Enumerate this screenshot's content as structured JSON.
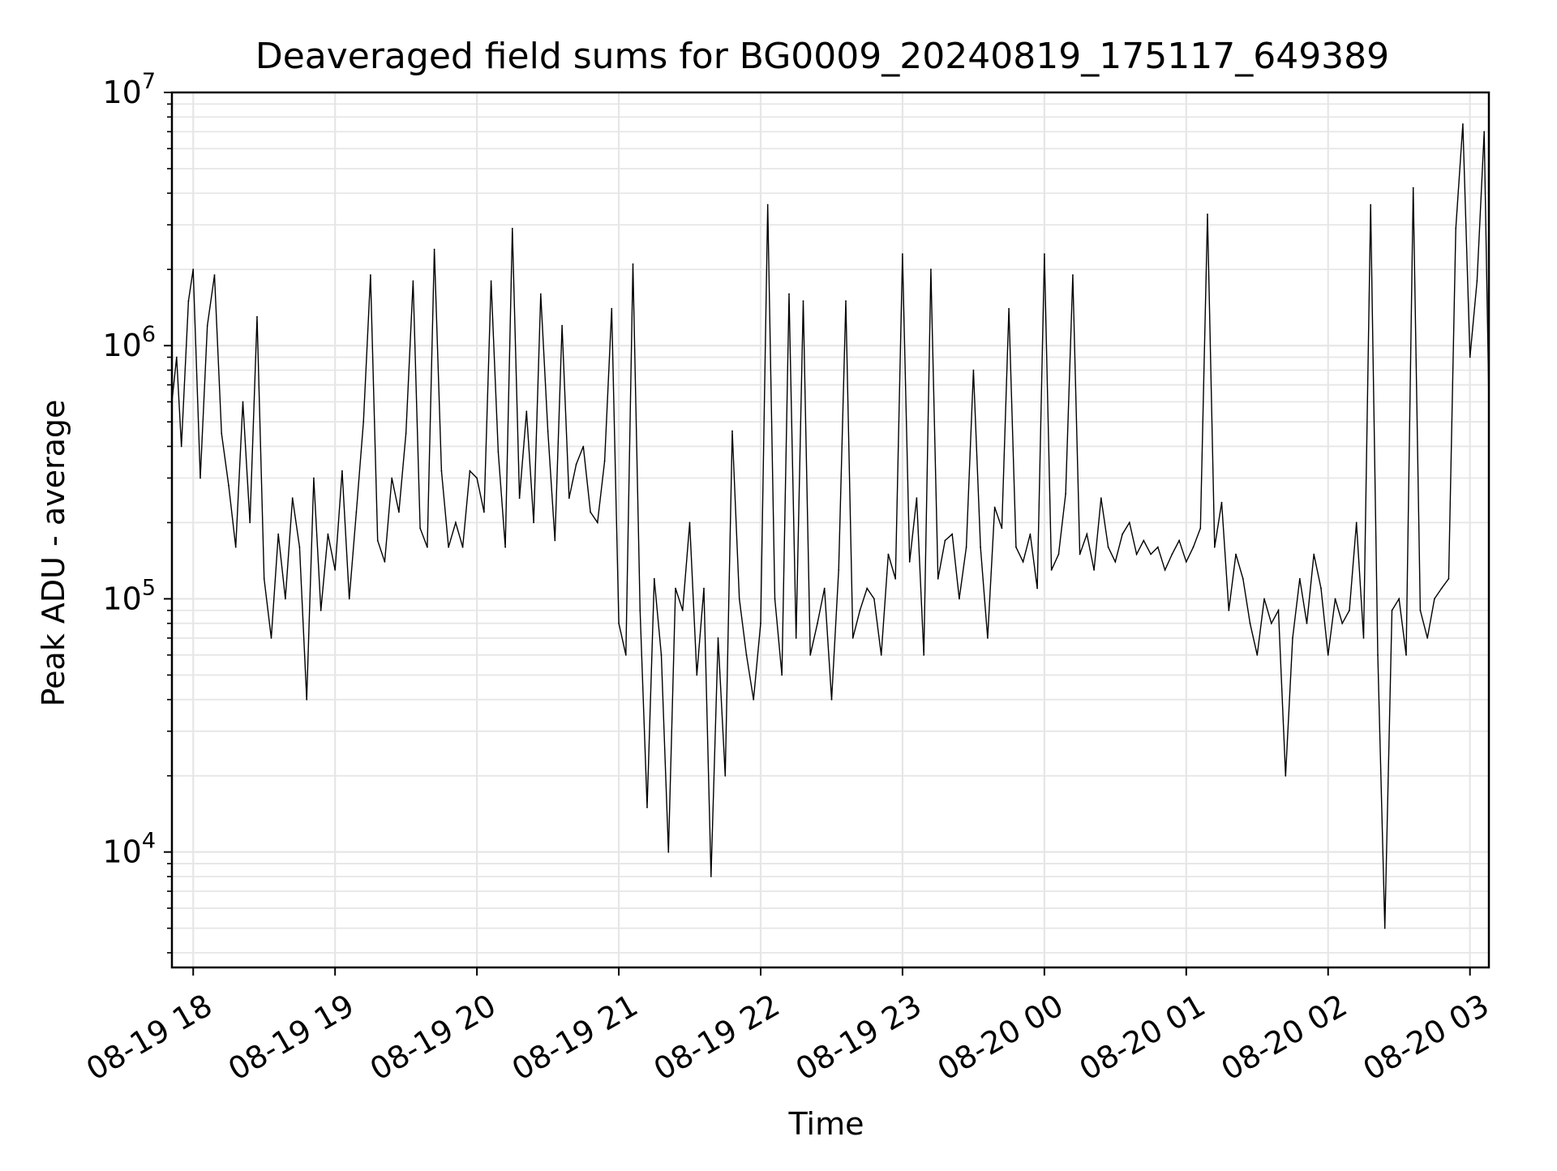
{
  "chart_data": {
    "type": "line",
    "title": "Deaveraged field sums for BG0009_20240819_175117_649389",
    "xlabel": "Time",
    "ylabel": "Peak ADU - average",
    "yscale": "log",
    "ylim": [
      3500,
      10000000
    ],
    "xlim": [
      "2024-08-19 17:51",
      "2024-08-20 03:08"
    ],
    "grid": true,
    "colors": {
      "line": "#000000",
      "grid": "#e6e6e6",
      "axes": "#000000"
    },
    "x_ticks": [
      {
        "value": "2024-08-19 18:00",
        "label": "08-19 18"
      },
      {
        "value": "2024-08-19 19:00",
        "label": "08-19 19"
      },
      {
        "value": "2024-08-19 20:00",
        "label": "08-19 20"
      },
      {
        "value": "2024-08-19 21:00",
        "label": "08-19 21"
      },
      {
        "value": "2024-08-19 22:00",
        "label": "08-19 22"
      },
      {
        "value": "2024-08-19 23:00",
        "label": "08-19 23"
      },
      {
        "value": "2024-08-20 00:00",
        "label": "08-20 00"
      },
      {
        "value": "2024-08-20 01:00",
        "label": "08-20 01"
      },
      {
        "value": "2024-08-20 02:00",
        "label": "08-20 02"
      },
      {
        "value": "2024-08-20 03:00",
        "label": "08-20 03"
      }
    ],
    "y_ticks": [
      {
        "value": 10000,
        "base": "10",
        "exp": "4"
      },
      {
        "value": 100000,
        "base": "10",
        "exp": "5"
      },
      {
        "value": 1000000,
        "base": "10",
        "exp": "6"
      },
      {
        "value": 10000000,
        "base": "10",
        "exp": "7"
      }
    ],
    "series": [
      {
        "values_note": "",
        "x": [
          "2024-08-19 17:51",
          "2024-08-19 17:53",
          "2024-08-19 17:55",
          "2024-08-19 17:58",
          "2024-08-19 18:00",
          "2024-08-19 18:03",
          "2024-08-19 18:06",
          "2024-08-19 18:09",
          "2024-08-19 18:12",
          "2024-08-19 18:15",
          "2024-08-19 18:18",
          "2024-08-19 18:21",
          "2024-08-19 18:24",
          "2024-08-19 18:27",
          "2024-08-19 18:30",
          "2024-08-19 18:33",
          "2024-08-19 18:36",
          "2024-08-19 18:39",
          "2024-08-19 18:42",
          "2024-08-19 18:45",
          "2024-08-19 18:48",
          "2024-08-19 18:51",
          "2024-08-19 18:54",
          "2024-08-19 18:57",
          "2024-08-19 19:00",
          "2024-08-19 19:03",
          "2024-08-19 19:06",
          "2024-08-19 19:09",
          "2024-08-19 19:12",
          "2024-08-19 19:15",
          "2024-08-19 19:18",
          "2024-08-19 19:21",
          "2024-08-19 19:24",
          "2024-08-19 19:27",
          "2024-08-19 19:30",
          "2024-08-19 19:33",
          "2024-08-19 19:36",
          "2024-08-19 19:39",
          "2024-08-19 19:42",
          "2024-08-19 19:45",
          "2024-08-19 19:48",
          "2024-08-19 19:51",
          "2024-08-19 19:54",
          "2024-08-19 19:57",
          "2024-08-19 20:00",
          "2024-08-19 20:03",
          "2024-08-19 20:06",
          "2024-08-19 20:09",
          "2024-08-19 20:12",
          "2024-08-19 20:15",
          "2024-08-19 20:18",
          "2024-08-19 20:21",
          "2024-08-19 20:24",
          "2024-08-19 20:27",
          "2024-08-19 20:30",
          "2024-08-19 20:33",
          "2024-08-19 20:36",
          "2024-08-19 20:39",
          "2024-08-19 20:42",
          "2024-08-19 20:45",
          "2024-08-19 20:48",
          "2024-08-19 20:51",
          "2024-08-19 20:54",
          "2024-08-19 20:57",
          "2024-08-19 21:00",
          "2024-08-19 21:03",
          "2024-08-19 21:06",
          "2024-08-19 21:09",
          "2024-08-19 21:12",
          "2024-08-19 21:15",
          "2024-08-19 21:18",
          "2024-08-19 21:21",
          "2024-08-19 21:24",
          "2024-08-19 21:27",
          "2024-08-19 21:30",
          "2024-08-19 21:33",
          "2024-08-19 21:36",
          "2024-08-19 21:39",
          "2024-08-19 21:42",
          "2024-08-19 21:45",
          "2024-08-19 21:48",
          "2024-08-19 21:51",
          "2024-08-19 21:54",
          "2024-08-19 21:57",
          "2024-08-19 22:00",
          "2024-08-19 22:03",
          "2024-08-19 22:06",
          "2024-08-19 22:09",
          "2024-08-19 22:12",
          "2024-08-19 22:15",
          "2024-08-19 22:18",
          "2024-08-19 22:21",
          "2024-08-19 22:24",
          "2024-08-19 22:27",
          "2024-08-19 22:30",
          "2024-08-19 22:33",
          "2024-08-19 22:36",
          "2024-08-19 22:39",
          "2024-08-19 22:42",
          "2024-08-19 22:45",
          "2024-08-19 22:48",
          "2024-08-19 22:51",
          "2024-08-19 22:54",
          "2024-08-19 22:57",
          "2024-08-19 23:00",
          "2024-08-19 23:03",
          "2024-08-19 23:06",
          "2024-08-19 23:09",
          "2024-08-19 23:12",
          "2024-08-19 23:15",
          "2024-08-19 23:18",
          "2024-08-19 23:21",
          "2024-08-19 23:24",
          "2024-08-19 23:27",
          "2024-08-19 23:30",
          "2024-08-19 23:33",
          "2024-08-19 23:36",
          "2024-08-19 23:39",
          "2024-08-19 23:42",
          "2024-08-19 23:45",
          "2024-08-19 23:48",
          "2024-08-19 23:51",
          "2024-08-19 23:54",
          "2024-08-19 23:57",
          "2024-08-20 00:00",
          "2024-08-20 00:03",
          "2024-08-20 00:06",
          "2024-08-20 00:09",
          "2024-08-20 00:12",
          "2024-08-20 00:15",
          "2024-08-20 00:18",
          "2024-08-20 00:21",
          "2024-08-20 00:24",
          "2024-08-20 00:27",
          "2024-08-20 00:30",
          "2024-08-20 00:33",
          "2024-08-20 00:36",
          "2024-08-20 00:39",
          "2024-08-20 00:42",
          "2024-08-20 00:45",
          "2024-08-20 00:48",
          "2024-08-20 00:51",
          "2024-08-20 00:54",
          "2024-08-20 00:57",
          "2024-08-20 01:00",
          "2024-08-20 01:03",
          "2024-08-20 01:06",
          "2024-08-20 01:09",
          "2024-08-20 01:12",
          "2024-08-20 01:15",
          "2024-08-20 01:18",
          "2024-08-20 01:21",
          "2024-08-20 01:24",
          "2024-08-20 01:27",
          "2024-08-20 01:30",
          "2024-08-20 01:33",
          "2024-08-20 01:36",
          "2024-08-20 01:39",
          "2024-08-20 01:42",
          "2024-08-20 01:45",
          "2024-08-20 01:48",
          "2024-08-20 01:51",
          "2024-08-20 01:54",
          "2024-08-20 01:57",
          "2024-08-20 02:00",
          "2024-08-20 02:03",
          "2024-08-20 02:06",
          "2024-08-20 02:09",
          "2024-08-20 02:12",
          "2024-08-20 02:15",
          "2024-08-20 02:18",
          "2024-08-20 02:21",
          "2024-08-20 02:24",
          "2024-08-20 02:27",
          "2024-08-20 02:30",
          "2024-08-20 02:33",
          "2024-08-20 02:36",
          "2024-08-20 02:39",
          "2024-08-20 02:42",
          "2024-08-20 02:45",
          "2024-08-20 02:48",
          "2024-08-20 02:51",
          "2024-08-20 02:54",
          "2024-08-20 02:57",
          "2024-08-20 03:00",
          "2024-08-20 03:03",
          "2024-08-20 03:06",
          "2024-08-20 03:08"
        ],
        "values": [
          600000,
          900000,
          400000,
          1500000,
          2000000,
          300000,
          1200000,
          1900000,
          450000,
          280000,
          160000,
          600000,
          200000,
          1300000,
          120000,
          70000,
          180000,
          100000,
          250000,
          160000,
          40000,
          300000,
          90000,
          180000,
          130000,
          320000,
          100000,
          220000,
          500000,
          1900000,
          170000,
          140000,
          300000,
          220000,
          450000,
          1800000,
          190000,
          160000,
          2400000,
          320000,
          160000,
          200000,
          160000,
          320000,
          300000,
          220000,
          1800000,
          380000,
          160000,
          2900000,
          250000,
          550000,
          200000,
          1600000,
          460000,
          170000,
          1200000,
          250000,
          340000,
          400000,
          220000,
          200000,
          350000,
          1400000,
          80000,
          60000,
          2100000,
          90000,
          15000,
          120000,
          60000,
          10000,
          110000,
          90000,
          200000,
          50000,
          110000,
          8000,
          70000,
          20000,
          460000,
          100000,
          60000,
          40000,
          80000,
          3600000,
          100000,
          50000,
          1600000,
          70000,
          1500000,
          60000,
          80000,
          110000,
          40000,
          130000,
          1500000,
          70000,
          90000,
          110000,
          100000,
          60000,
          150000,
          120000,
          2300000,
          140000,
          250000,
          60000,
          2000000,
          120000,
          170000,
          180000,
          100000,
          160000,
          800000,
          160000,
          70000,
          230000,
          190000,
          1400000,
          160000,
          140000,
          180000,
          110000,
          2300000,
          130000,
          150000,
          260000,
          1900000,
          150000,
          180000,
          130000,
          250000,
          160000,
          140000,
          180000,
          200000,
          150000,
          170000,
          150000,
          160000,
          130000,
          150000,
          170000,
          140000,
          160000,
          190000,
          3300000,
          160000,
          240000,
          90000,
          150000,
          120000,
          80000,
          60000,
          100000,
          80000,
          90000,
          20000,
          70000,
          120000,
          80000,
          150000,
          110000,
          60000,
          100000,
          80000,
          90000,
          200000,
          70000,
          3600000,
          60000,
          5000,
          90000,
          100000,
          60000,
          4200000,
          90000,
          70000,
          100000,
          110000,
          120000,
          2900000,
          7500000,
          900000,
          1800000,
          7000000,
          600000
        ]
      }
    ]
  }
}
